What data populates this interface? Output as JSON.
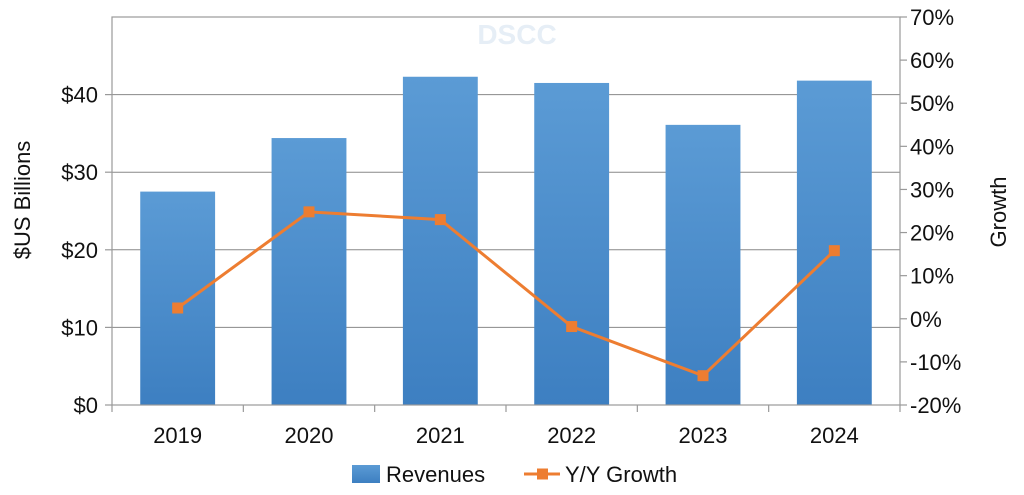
{
  "chart_data": {
    "type": "bar",
    "categories": [
      "2019",
      "2020",
      "2021",
      "2022",
      "2023",
      "2024"
    ],
    "series": [
      {
        "name": "Revenues",
        "type": "bar",
        "axis": "left",
        "values": [
          27.5,
          34.4,
          42.3,
          41.5,
          36.1,
          41.8
        ]
      },
      {
        "name": "Y/Y Growth",
        "type": "line",
        "axis": "right",
        "values": [
          2.5,
          24.8,
          23.0,
          -1.8,
          -13.2,
          15.8
        ]
      }
    ],
    "ylabel": "$US Billions",
    "ylabel_right": "Growth",
    "ylim": [
      0,
      50
    ],
    "ylim_right": [
      -20,
      70
    ],
    "yticks": [
      {
        "value": 0,
        "label": "$0"
      },
      {
        "value": 10,
        "label": "$10"
      },
      {
        "value": 20,
        "label": "$20"
      },
      {
        "value": 30,
        "label": "$30"
      },
      {
        "value": 40,
        "label": "$40"
      }
    ],
    "yticks_right": [
      {
        "value": -20,
        "label": "-20%"
      },
      {
        "value": -10,
        "label": "-10%"
      },
      {
        "value": 0,
        "label": "0%"
      },
      {
        "value": 10,
        "label": "10%"
      },
      {
        "value": 20,
        "label": "20%"
      },
      {
        "value": 30,
        "label": "30%"
      },
      {
        "value": 40,
        "label": "40%"
      },
      {
        "value": 50,
        "label": "50%"
      },
      {
        "value": 60,
        "label": "60%"
      },
      {
        "value": 70,
        "label": "70%"
      }
    ],
    "grid": true,
    "legend": "bottom",
    "watermark": "DSCC",
    "colors": {
      "bar": "#5b9bd5",
      "bar_dark": "#3d7fc1",
      "line": "#ed7d31",
      "grid": "#888888",
      "axis": "#999999"
    }
  }
}
